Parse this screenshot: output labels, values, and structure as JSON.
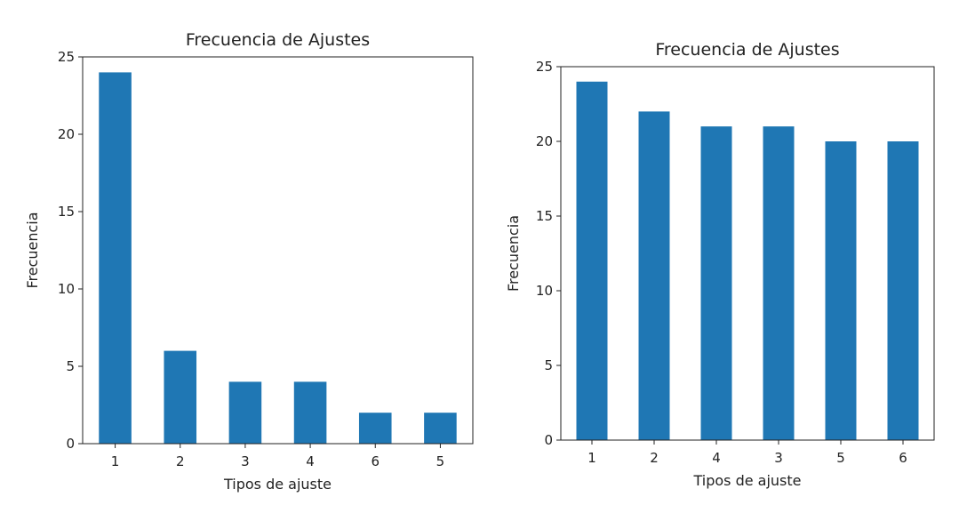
{
  "chart_data": [
    {
      "type": "bar",
      "title": "Frecuencia de Ajustes",
      "xlabel": "Tipos de ajuste",
      "ylabel": "Frecuencia",
      "categories": [
        "1",
        "2",
        "3",
        "4",
        "6",
        "5"
      ],
      "values": [
        24,
        6,
        4,
        4,
        2,
        2
      ],
      "ylim": [
        0,
        25
      ],
      "yticks": [
        0,
        5,
        10,
        15,
        20,
        25
      ],
      "color": "#1f77b4",
      "grid": false
    },
    {
      "type": "bar",
      "title": "Frecuencia de Ajustes",
      "xlabel": "Tipos de ajuste",
      "ylabel": "Frecuencia",
      "categories": [
        "1",
        "2",
        "4",
        "3",
        "5",
        "6"
      ],
      "values": [
        24,
        22,
        21,
        21,
        20,
        20
      ],
      "ylim": [
        0,
        25
      ],
      "yticks": [
        0,
        5,
        10,
        15,
        20,
        25
      ],
      "color": "#1f77b4",
      "grid": false
    }
  ]
}
